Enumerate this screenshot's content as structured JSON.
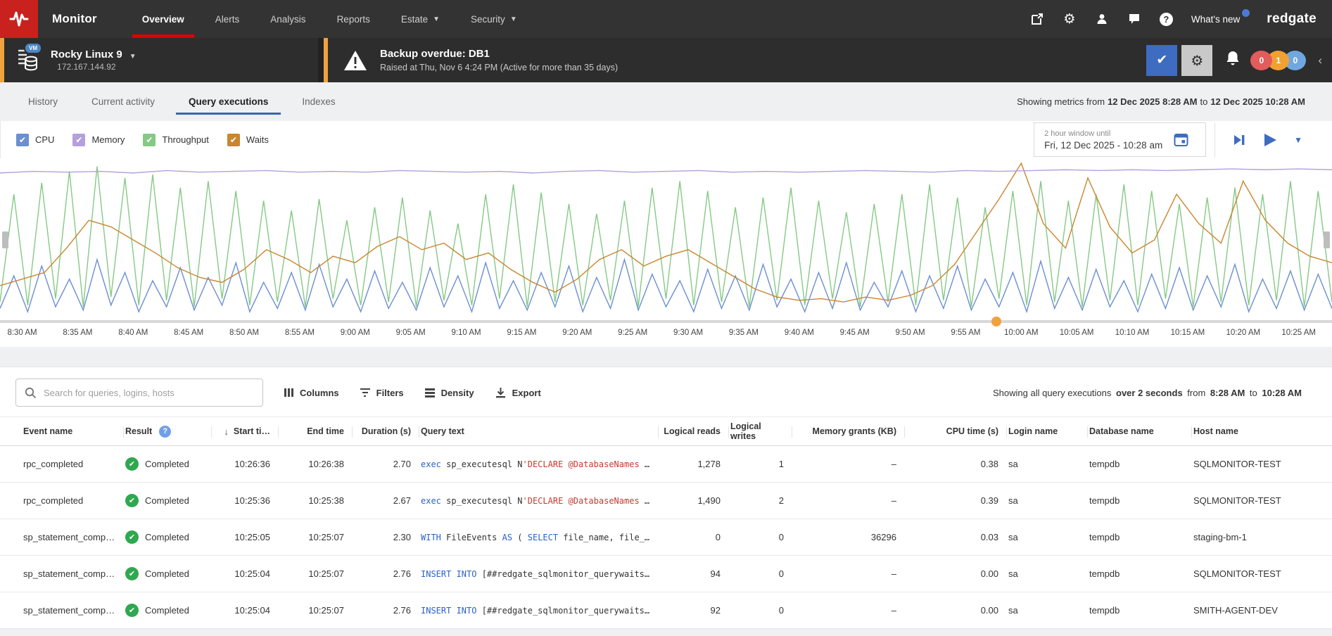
{
  "colors": {
    "brand_red": "#c9211e",
    "nav_bg": "#333333",
    "alertbar_bg": "#2d2d2d",
    "accent_orange": "#efa23d",
    "accent_blue": "#3d6cc0",
    "tab_underline": "#3b66ad",
    "success_green": "#2fa84f",
    "badge_red": "#e25c5c",
    "badge_orange": "#f0a132",
    "badge_blue": "#70a7e0",
    "sql_keyword": "#2a62c9",
    "sql_string": "#c63a2f"
  },
  "nav": {
    "brand": "Monitor",
    "items": [
      {
        "label": "Overview",
        "active": true
      },
      {
        "label": "Alerts"
      },
      {
        "label": "Analysis"
      },
      {
        "label": "Reports"
      },
      {
        "label": "Estate",
        "chevron": true
      },
      {
        "label": "Security",
        "chevron": true
      }
    ],
    "right": {
      "whats_new": "What's new",
      "logo": "redgate"
    }
  },
  "alert_bar": {
    "server": {
      "vm_badge": "VM",
      "name": "Rocky Linux 9",
      "ip": "172.167.144.92"
    },
    "alert": {
      "title": "Backup overdue: DB1",
      "subtitle": "Raised at Thu, Nov 6 4:24 PM (Active for more than 35 days)"
    },
    "badges": [
      {
        "count": "0",
        "color": "#e25c5c"
      },
      {
        "count": "1",
        "color": "#f0a132"
      },
      {
        "count": "0",
        "color": "#70a7e0"
      }
    ]
  },
  "tabs": {
    "items": [
      {
        "label": "History"
      },
      {
        "label": "Current activity"
      },
      {
        "label": "Query executions",
        "active": true
      },
      {
        "label": "Indexes"
      }
    ],
    "showing": {
      "prefix": "Showing metrics from",
      "from": "12 Dec 2025 8:28 AM",
      "mid": "to",
      "to": "12 Dec 2025 10:28 AM"
    }
  },
  "metric_toggles": [
    {
      "label": "CPU",
      "color": "#6b8fd0",
      "checked": true
    },
    {
      "label": "Memory",
      "color": "#b5a0dc",
      "checked": true
    },
    {
      "label": "Throughput",
      "color": "#85c985",
      "checked": true
    },
    {
      "label": "Waits",
      "color": "#c8862f",
      "checked": true
    }
  ],
  "time_window": {
    "label": "2 hour window until",
    "value": "Fri, 12 Dec 2025 - 10:28 am"
  },
  "chart_data": {
    "type": "line",
    "title": "",
    "x_range": [
      "8:28 AM",
      "10:28 AM"
    ],
    "x_ticks": [
      "8:30 AM",
      "8:35 AM",
      "8:40 AM",
      "8:45 AM",
      "8:50 AM",
      "8:55 AM",
      "9:00 AM",
      "9:05 AM",
      "9:10 AM",
      "9:15 AM",
      "9:20 AM",
      "9:25 AM",
      "9:30 AM",
      "9:35 AM",
      "9:40 AM",
      "9:45 AM",
      "9:50 AM",
      "9:55 AM",
      "10:00 AM",
      "10:05 AM",
      "10:10 AM",
      "10:15 AM",
      "10:20 AM",
      "10:25 AM"
    ],
    "tick_start_min": 2,
    "tick_step_min": 5,
    "window_min": 120,
    "ylim": [
      0,
      100
    ],
    "grid": false,
    "legend_position": "top-left-toggles",
    "scrubber_position": 0.748,
    "series": [
      {
        "name": "Throughput",
        "color": "#85c985",
        "values": [
          12,
          78,
          10,
          85,
          14,
          92,
          9,
          95,
          15,
          88,
          10,
          90,
          13,
          82,
          9,
          86,
          14,
          80,
          10,
          74,
          12,
          68,
          9,
          75,
          14,
          62,
          10,
          70,
          12,
          76,
          9,
          68,
          13,
          60,
          10,
          78,
          14,
          84,
          9,
          79,
          12,
          72,
          10,
          66,
          13,
          74,
          9,
          82,
          14,
          86,
          10,
          80,
          12,
          70,
          9,
          76,
          13,
          82,
          10,
          74,
          14,
          67,
          9,
          72,
          12,
          78,
          10,
          84,
          13,
          76,
          9,
          70,
          14,
          80,
          10,
          86,
          12,
          74,
          9,
          78,
          13,
          84,
          10,
          80,
          14,
          72,
          9,
          76,
          12,
          82,
          10,
          78,
          13,
          86,
          9,
          80,
          12
        ]
      },
      {
        "name": "CPU",
        "color": "#6b8fd0",
        "values": [
          8,
          28,
          6,
          34,
          9,
          26,
          7,
          38,
          10,
          30,
          6,
          25,
          9,
          33,
          7,
          27,
          10,
          36,
          6,
          24,
          8,
          30,
          7,
          35,
          9,
          26,
          6,
          31,
          8,
          24,
          7,
          33,
          9,
          28,
          6,
          36,
          8,
          25,
          7,
          30,
          9,
          34,
          6,
          27,
          8,
          38,
          7,
          29,
          9,
          25,
          6,
          32,
          8,
          28,
          7,
          35,
          9,
          26,
          6,
          30,
          8,
          36,
          7,
          24,
          9,
          31,
          6,
          28,
          8,
          34,
          7,
          26,
          9,
          30,
          6,
          37,
          8,
          27,
          7,
          32,
          9,
          25,
          6,
          29,
          8,
          33,
          7,
          28,
          9,
          35,
          6,
          26,
          8,
          31,
          7,
          29,
          8
        ]
      },
      {
        "name": "Waits",
        "color": "#c8862f",
        "values": [
          22,
          26,
          30,
          45,
          62,
          58,
          50,
          42,
          33,
          27,
          24,
          32,
          44,
          38,
          30,
          40,
          36,
          46,
          52,
          44,
          48,
          38,
          42,
          32,
          24,
          18,
          26,
          38,
          44,
          34,
          40,
          44,
          36,
          28,
          20,
          15,
          13,
          14,
          12,
          15,
          13,
          16,
          22,
          35,
          55,
          75,
          97,
          60,
          45,
          88,
          58,
          42,
          50,
          78,
          60,
          48,
          86,
          62,
          48,
          40,
          36
        ]
      },
      {
        "name": "Memory",
        "color": "#b5a0dc",
        "values": [
          91,
          92,
          91.5,
          92,
          91,
          92.5,
          91.5,
          92,
          92.5,
          91.5,
          92,
          91.5,
          92.5,
          92,
          91.5,
          92,
          91,
          92,
          92.5,
          91.5,
          92,
          92.5,
          91.5,
          92,
          91.5,
          92,
          92.5,
          92,
          91.5,
          92.5,
          92,
          92.5,
          93,
          92.5,
          93,
          92.5,
          93,
          93.5,
          93,
          93.5,
          93
        ]
      }
    ]
  },
  "toolbar": {
    "search_placeholder": "Search for queries, logins, hosts",
    "buttons": [
      {
        "label": "Columns"
      },
      {
        "label": "Filters"
      },
      {
        "label": "Density"
      },
      {
        "label": "Export"
      }
    ],
    "showing": {
      "p1": "Showing all query executions",
      "b1": "over 2 seconds",
      "p2": "from",
      "b2": "8:28 AM",
      "p3": "to",
      "b3": "10:28 AM"
    }
  },
  "table": {
    "columns": [
      {
        "label": "Event name",
        "align": "left"
      },
      {
        "label": "Result",
        "align": "left",
        "help": true
      },
      {
        "label": "Start ti…",
        "align": "right",
        "sort": "desc"
      },
      {
        "label": "End time",
        "align": "right"
      },
      {
        "label": "Duration (s)",
        "align": "right"
      },
      {
        "label": "Query text",
        "align": "left"
      },
      {
        "label": "Logical reads",
        "align": "right"
      },
      {
        "label": "Logical writes",
        "align": "right"
      },
      {
        "label": "Memory grants (KB)",
        "align": "right"
      },
      {
        "label": "CPU time (s)",
        "align": "right"
      },
      {
        "label": "Login name",
        "align": "left"
      },
      {
        "label": "Database name",
        "align": "left"
      },
      {
        "label": "Host name",
        "align": "left"
      }
    ],
    "rows": [
      {
        "event": "rpc_completed",
        "result": "Completed",
        "start": "10:26:36",
        "end": "10:26:38",
        "duration": "2.70",
        "query": [
          [
            "kw",
            "exec"
          ],
          [
            "pl",
            " sp_executesql N"
          ],
          [
            "str",
            "'DECLARE @DatabaseNames"
          ],
          [
            "pl",
            " …"
          ]
        ],
        "logical_reads": "1,278",
        "logical_writes": "1",
        "memory_grants": "–",
        "cpu_time": "0.38",
        "login": "sa",
        "database": "tempdb",
        "host": "SQLMONITOR-TEST"
      },
      {
        "event": "rpc_completed",
        "result": "Completed",
        "start": "10:25:36",
        "end": "10:25:38",
        "duration": "2.67",
        "query": [
          [
            "kw",
            "exec"
          ],
          [
            "pl",
            " sp_executesql N"
          ],
          [
            "str",
            "'DECLARE @DatabaseNames"
          ],
          [
            "pl",
            " …"
          ]
        ],
        "logical_reads": "1,490",
        "logical_writes": "2",
        "memory_grants": "–",
        "cpu_time": "0.39",
        "login": "sa",
        "database": "tempdb",
        "host": "SQLMONITOR-TEST"
      },
      {
        "event": "sp_statement_compl…",
        "result": "Completed",
        "start": "10:25:05",
        "end": "10:25:07",
        "duration": "2.30",
        "query": [
          [
            "kw",
            "WITH"
          ],
          [
            "pl",
            " FileEvents "
          ],
          [
            "kw",
            "AS"
          ],
          [
            "pl",
            " ( "
          ],
          [
            "kw",
            "SELECT"
          ],
          [
            "pl",
            " file_name, file_…"
          ]
        ],
        "logical_reads": "0",
        "logical_writes": "0",
        "memory_grants": "36296",
        "cpu_time": "0.03",
        "login": "sa",
        "database": "tempdb",
        "host": "staging-bm-1"
      },
      {
        "event": "sp_statement_compl…",
        "result": "Completed",
        "start": "10:25:04",
        "end": "10:25:07",
        "duration": "2.76",
        "query": [
          [
            "kw",
            "INSERT INTO"
          ],
          [
            "pl",
            " [##redgate_sqlmonitor_querywaits…"
          ]
        ],
        "logical_reads": "94",
        "logical_writes": "0",
        "memory_grants": "–",
        "cpu_time": "0.00",
        "login": "sa",
        "database": "tempdb",
        "host": "SQLMONITOR-TEST"
      },
      {
        "event": "sp_statement_compl…",
        "result": "Completed",
        "start": "10:25:04",
        "end": "10:25:07",
        "duration": "2.76",
        "query": [
          [
            "kw",
            "INSERT INTO"
          ],
          [
            "pl",
            " [##redgate_sqlmonitor_querywaits…"
          ]
        ],
        "logical_reads": "92",
        "logical_writes": "0",
        "memory_grants": "–",
        "cpu_time": "0.00",
        "login": "sa",
        "database": "tempdb",
        "host": "SMITH-AGENT-DEV"
      }
    ]
  }
}
